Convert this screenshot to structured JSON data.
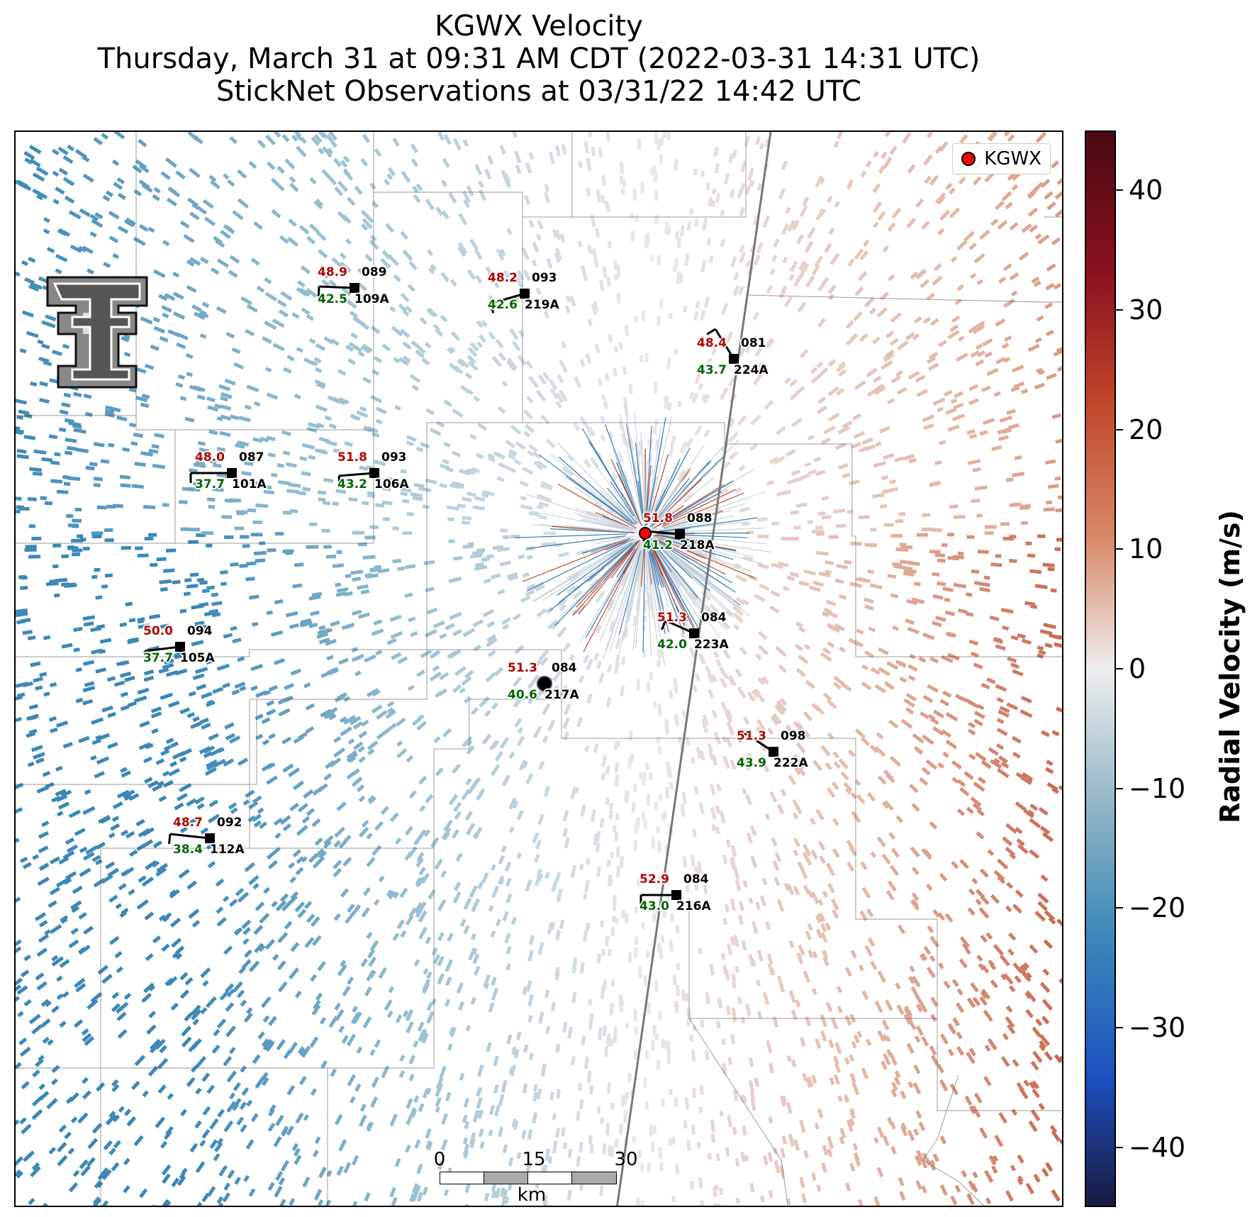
{
  "title": {
    "line1": "KGWX Velocity",
    "line2": "Thursday, March 31 at 09:31 AM CDT (2022-03-31 14:31 UTC)",
    "line3": "StickNet Observations at 03/31/22 14:42 UTC"
  },
  "legend": {
    "label": "KGWX",
    "marker_color": "#ff0000"
  },
  "colorbar": {
    "title": "Radial Velocity (m/s)",
    "range": [
      -45,
      45
    ],
    "ticks": [
      "40",
      "30",
      "20",
      "10",
      "0",
      "−10",
      "−20",
      "−30",
      "−40"
    ],
    "colors": [
      "#4a0a12",
      "#8b1020",
      "#c0452a",
      "#d98a6a",
      "#eeeeee",
      "#8fb4c6",
      "#3a88b8",
      "#1c50c0",
      "#1a1a40"
    ]
  },
  "scalebar": {
    "labels": [
      "0",
      "15",
      "30"
    ],
    "unit": "km"
  },
  "stations": [
    {
      "id": "109A",
      "temp": "48.9",
      "dew": "42.5",
      "dir": "089"
    },
    {
      "id": "219A",
      "temp": "48.2",
      "dew": "42.6",
      "dir": "093"
    },
    {
      "id": "224A",
      "temp": "48.4",
      "dew": "43.7",
      "dir": "081"
    },
    {
      "id": "101A",
      "temp": "48.0",
      "dew": "37.7",
      "dir": "087"
    },
    {
      "id": "106A",
      "temp": "51.8",
      "dew": "43.2",
      "dir": "093"
    },
    {
      "id": "218A",
      "temp": "51.8",
      "dew": "41.2",
      "dir": "088"
    },
    {
      "id": "223A",
      "temp": "51.3",
      "dew": "42.0",
      "dir": "084"
    },
    {
      "id": "105A",
      "temp": "50.0",
      "dew": "37.7",
      "dir": "094"
    },
    {
      "id": "217A",
      "temp": "51.3",
      "dew": "40.6",
      "dir": "084"
    },
    {
      "id": "222A",
      "temp": "51.3",
      "dew": "43.9",
      "dir": "098"
    },
    {
      "id": "112A",
      "temp": "48.7",
      "dew": "38.4",
      "dir": "092"
    },
    {
      "id": "216A",
      "temp": "52.9",
      "dew": "43.0",
      "dir": "084"
    }
  ],
  "logo_icon": "texas-tech-double-t-logo",
  "radar_icon": "radar-site-marker"
}
